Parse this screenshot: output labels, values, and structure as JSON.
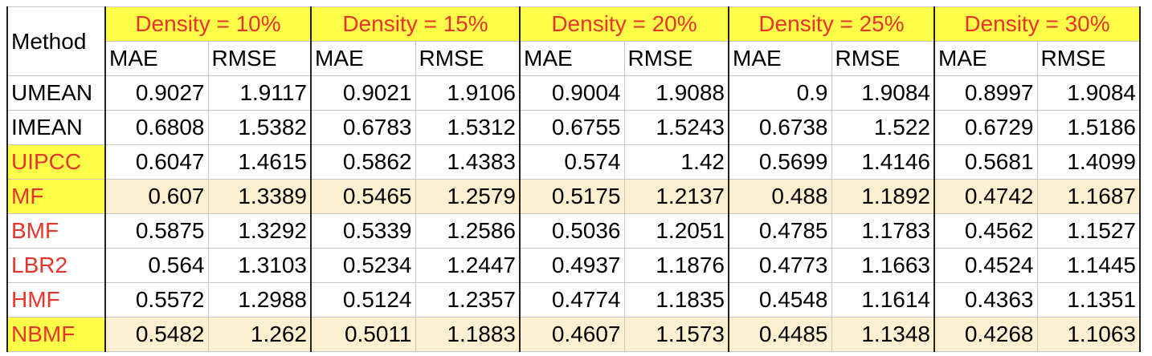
{
  "table": {
    "method_header": "Method",
    "density_headers": [
      "Density = 10%",
      "Density = 15%",
      "Density = 20%",
      "Density = 25%",
      "Density = 30%"
    ],
    "metric_headers": [
      "MAE",
      "RMSE"
    ],
    "rows": [
      {
        "method": "UMEAN",
        "red": false,
        "highlight": false,
        "values": [
          "0.9027",
          "1.9117",
          "0.9021",
          "1.9106",
          "0.9004",
          "1.9088",
          "0.9",
          "1.9084",
          "0.8997",
          "1.9084"
        ]
      },
      {
        "method": "IMEAN",
        "red": false,
        "highlight": false,
        "values": [
          "0.6808",
          "1.5382",
          "0.6783",
          "1.5312",
          "0.6755",
          "1.5243",
          "0.6738",
          "1.522",
          "0.6729",
          "1.5186"
        ]
      },
      {
        "method": "UIPCC",
        "red": true,
        "highlight": false,
        "values": [
          "0.6047",
          "1.4615",
          "0.5862",
          "1.4383",
          "0.574",
          "1.42",
          "0.5699",
          "1.4146",
          "0.5681",
          "1.4099"
        ]
      },
      {
        "method": "MF",
        "red": true,
        "highlight": true,
        "values": [
          "0.607",
          "1.3389",
          "0.5465",
          "1.2579",
          "0.5175",
          "1.2137",
          "0.488",
          "1.1892",
          "0.4742",
          "1.1687"
        ]
      },
      {
        "method": "BMF",
        "red": true,
        "highlight": false,
        "values": [
          "0.5875",
          "1.3292",
          "0.5339",
          "1.2586",
          "0.5036",
          "1.2051",
          "0.4785",
          "1.1783",
          "0.4562",
          "1.1527"
        ]
      },
      {
        "method": "LBR2",
        "red": true,
        "highlight": false,
        "values": [
          "0.564",
          "1.3103",
          "0.5234",
          "1.2447",
          "0.4937",
          "1.1876",
          "0.4773",
          "1.1663",
          "0.4524",
          "1.1445"
        ]
      },
      {
        "method": "HMF",
        "red": true,
        "highlight": false,
        "values": [
          "0.5572",
          "1.2988",
          "0.5124",
          "1.2357",
          "0.4774",
          "1.1835",
          "0.4548",
          "1.1614",
          "0.4363",
          "1.1351"
        ]
      },
      {
        "method": "NBMF",
        "red": true,
        "highlight": true,
        "values": [
          "0.5482",
          "1.262",
          "0.5011",
          "1.1883",
          "0.4607",
          "1.1573",
          "0.4485",
          "1.1348",
          "0.4268",
          "1.1063"
        ]
      }
    ]
  },
  "colors": {
    "header_yellow": "#ffff4a",
    "highlight_cream": "#fdf0d0",
    "red_text": "#e8352b"
  }
}
